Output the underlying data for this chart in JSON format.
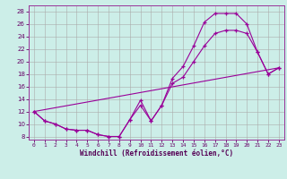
{
  "xlabel": "Windchill (Refroidissement éolien,°C)",
  "bg_color": "#cceee8",
  "line_color": "#990099",
  "xlim": [
    -0.5,
    23.5
  ],
  "ylim": [
    7.5,
    29.0
  ],
  "xticks": [
    0,
    1,
    2,
    3,
    4,
    5,
    6,
    7,
    8,
    9,
    10,
    11,
    12,
    13,
    14,
    15,
    16,
    17,
    18,
    19,
    20,
    21,
    22,
    23
  ],
  "yticks": [
    8,
    10,
    12,
    14,
    16,
    18,
    20,
    22,
    24,
    26,
    28
  ],
  "curve_upper_x": [
    0,
    1,
    2,
    3,
    4,
    5,
    6,
    7,
    8,
    9,
    10,
    11,
    12,
    13,
    14,
    15,
    16,
    17,
    18,
    19,
    20,
    21,
    22,
    23
  ],
  "curve_upper_y": [
    12.0,
    10.5,
    10.0,
    9.2,
    9.0,
    9.0,
    8.3,
    8.0,
    8.0,
    10.7,
    13.8,
    10.5,
    13.0,
    17.3,
    19.2,
    22.5,
    26.3,
    27.7,
    27.7,
    27.7,
    26.0,
    21.5,
    18.0,
    19.0
  ],
  "curve_lower_x": [
    0,
    1,
    2,
    3,
    4,
    5,
    6,
    7,
    8,
    9,
    10,
    11,
    12,
    13,
    14,
    15,
    16,
    17,
    18,
    19,
    20,
    21,
    22,
    23
  ],
  "curve_lower_y": [
    12.0,
    10.5,
    10.0,
    9.2,
    9.0,
    9.0,
    8.3,
    8.0,
    8.0,
    10.7,
    13.0,
    10.5,
    13.0,
    16.5,
    17.5,
    20.0,
    22.5,
    24.5,
    25.0,
    25.0,
    24.5,
    21.5,
    18.0,
    19.0
  ],
  "line_x": [
    0,
    23
  ],
  "line_y": [
    12.0,
    19.0
  ],
  "marker": "+",
  "markersize": 3.5,
  "linewidth": 0.8
}
